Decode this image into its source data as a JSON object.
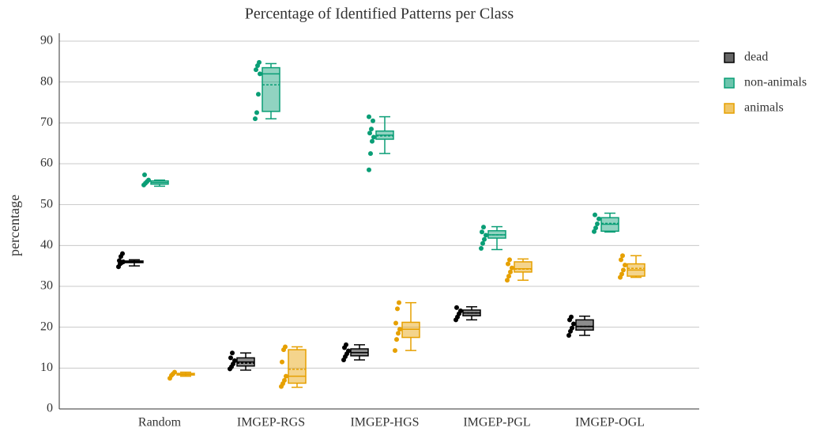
{
  "chart_data": {
    "type": "box",
    "title": "Percentage of Identified Patterns per Class",
    "y_label": "percentage",
    "categories": [
      "Random",
      "IMGEP-RGS",
      "IMGEP-HGS",
      "IMGEP-PGL",
      "IMGEP-OGL"
    ],
    "ylim": [
      0,
      90
    ],
    "yticks": [
      0,
      10,
      20,
      30,
      40,
      50,
      60,
      70,
      80,
      90
    ],
    "grid": true,
    "legend": "top-right",
    "series": [
      {
        "name": "dead",
        "color": "#000000",
        "boxes": [
          {
            "min": 35,
            "q1": 35.8,
            "median": 36,
            "q3": 36.2,
            "max": 36.5,
            "mean": 36,
            "points": [
              34.8,
              35.5,
              35.8,
              36,
              36.3,
              37.3,
              38
            ]
          },
          {
            "min": 9.5,
            "q1": 10.5,
            "median": 11.5,
            "q3": 12.5,
            "max": 13.7,
            "mean": 11.2,
            "points": [
              9.8,
              10.3,
              11,
              11.8,
              12.5,
              13.7
            ]
          },
          {
            "min": 12,
            "q1": 13,
            "median": 13.8,
            "q3": 14.7,
            "max": 15.7,
            "mean": 13.8,
            "points": [
              12,
              12.8,
              13.5,
              14.2,
              15,
              15.7
            ]
          },
          {
            "min": 21.8,
            "q1": 22.8,
            "median": 23.5,
            "q3": 24.2,
            "max": 25,
            "mean": 23.5,
            "points": [
              21.8,
              22.5,
              23.3,
              24,
              24.8
            ]
          },
          {
            "min": 18,
            "q1": 19.3,
            "median": 20.2,
            "q3": 21.8,
            "max": 22.7,
            "mean": 20.2,
            "points": [
              18,
              19,
              19.8,
              20.8,
              21.8,
              22.5
            ]
          }
        ]
      },
      {
        "name": "non-animals",
        "color": "#0a9e76",
        "boxes": [
          {
            "min": 54.5,
            "q1": 55,
            "median": 55.4,
            "q3": 55.8,
            "max": 56,
            "mean": 55.4,
            "points": [
              54.8,
              55.2,
              55.6,
              56,
              57.3
            ]
          },
          {
            "min": 71,
            "q1": 72.8,
            "median": 82,
            "q3": 83.5,
            "max": 84.5,
            "mean": 79.3,
            "points": [
              71,
              72.5,
              77,
              82,
              83,
              84,
              84.8
            ]
          },
          {
            "min": 62.5,
            "q1": 66,
            "median": 67,
            "q3": 68,
            "max": 71.5,
            "mean": 66.8,
            "points": [
              58.5,
              62.5,
              65.5,
              66.5,
              67.5,
              68.5,
              70.5,
              71.5
            ]
          },
          {
            "min": 39,
            "q1": 41.8,
            "median": 42.6,
            "q3": 43.6,
            "max": 44.6,
            "mean": 42.6,
            "points": [
              39.3,
              40.5,
              41.5,
              42.5,
              43.3,
              44.5
            ]
          },
          {
            "min": 43.3,
            "q1": 43.5,
            "median": 45.2,
            "q3": 46.8,
            "max": 47.9,
            "mean": 45.4,
            "points": [
              43.4,
              44.3,
              45.3,
              46.5,
              47.5
            ]
          }
        ]
      },
      {
        "name": "animals",
        "color": "#e6a000",
        "boxes": [
          {
            "min": 8,
            "q1": 8.3,
            "median": 8.5,
            "q3": 8.7,
            "max": 9,
            "mean": 8.5,
            "points": [
              7.5,
              8.2,
              8.6,
              9
            ]
          },
          {
            "min": 5.3,
            "q1": 6.3,
            "median": 8,
            "q3": 14.5,
            "max": 15.2,
            "mean": 9.7,
            "points": [
              5.5,
              6.2,
              7,
              8,
              11.5,
              14.5,
              15.2
            ]
          },
          {
            "min": 14.3,
            "q1": 17.5,
            "median": 19.5,
            "q3": 21.2,
            "max": 26,
            "mean": 19.5,
            "points": [
              14.3,
              17,
              18.5,
              19.5,
              21,
              24.5,
              26
            ]
          },
          {
            "min": 31.5,
            "q1": 33.5,
            "median": 34.3,
            "q3": 36,
            "max": 36.7,
            "mean": 34.2,
            "points": [
              31.5,
              32.5,
              33.5,
              34.5,
              35.5,
              36.5
            ]
          },
          {
            "min": 32.2,
            "q1": 32.5,
            "median": 34,
            "q3": 35.5,
            "max": 37.5,
            "mean": 34.4,
            "points": [
              32.2,
              33,
              34,
              35.2,
              36.5,
              37.5
            ]
          }
        ]
      }
    ]
  }
}
